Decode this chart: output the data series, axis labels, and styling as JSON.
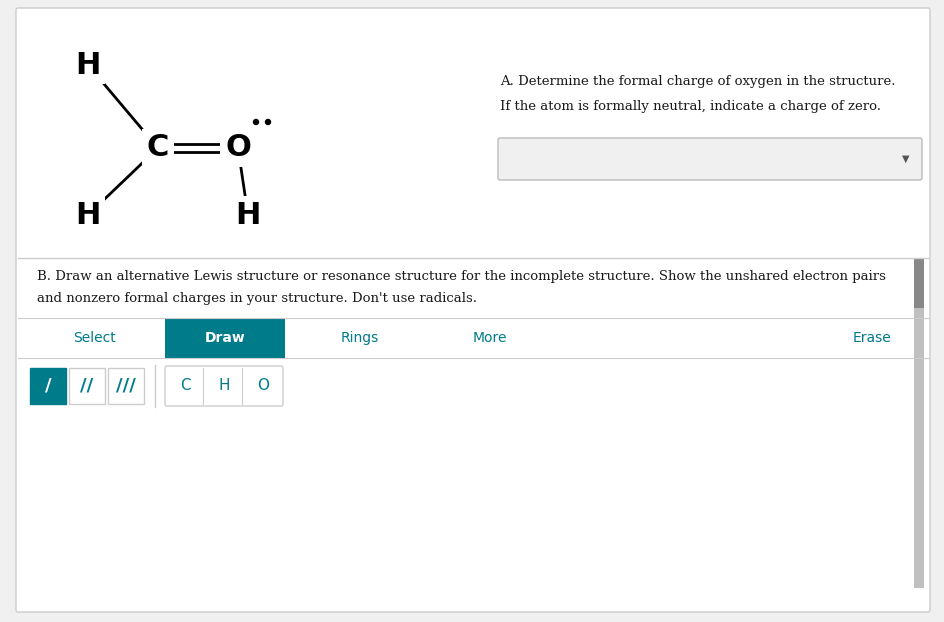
{
  "bg_color": "#ffffff",
  "outer_bg": "#f0f0f0",
  "border_color": "#cccccc",
  "teal_color": "#007b8a",
  "text_color_dark": "#1a1a1a",
  "text_color_teal": "#007b8a",
  "section_A_text_line1": "A. Determine the formal charge of oxygen in the structure.",
  "section_A_text_line2": "If the atom is formally neutral, indicate a charge of zero.",
  "section_B_text_line1": "B. Draw an alternative Lewis structure or resonance structure for the incomplete structure. Show the unshared electron pairs",
  "section_B_text_line2": "and nonzero formal charges in your structure. Don't use radicals.",
  "toolbar_items": [
    "Select",
    "Draw",
    "Rings",
    "More",
    "Erase"
  ],
  "toolbar_active": "Draw",
  "bond_buttons": [
    "/",
    "//",
    "///"
  ],
  "atom_buttons": [
    "C",
    "H",
    "O"
  ]
}
